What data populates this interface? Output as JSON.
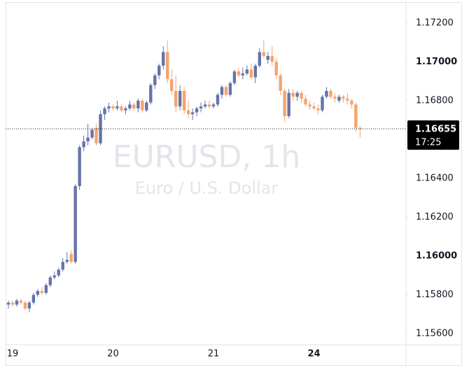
{
  "chart_data": {
    "type": "candlestick",
    "title": "EURUSD, 1h",
    "subtitle": "Euro / U.S. Dollar",
    "categories": [
      null,
      "19",
      null,
      null,
      null,
      null,
      null,
      null,
      null,
      null,
      null,
      null,
      null,
      null,
      null,
      null,
      null,
      null,
      null,
      null,
      null,
      null,
      null,
      null,
      null,
      "20",
      null,
      null,
      null,
      null,
      null,
      null,
      null,
      null,
      null,
      null,
      null,
      null,
      null,
      null,
      null,
      null,
      null,
      null,
      null,
      null,
      null,
      null,
      null,
      "21",
      null,
      null,
      null,
      null,
      null,
      null,
      null,
      null,
      null,
      null,
      null,
      null,
      null,
      null,
      null,
      null,
      null,
      null,
      null,
      null,
      null,
      null,
      null,
      "24",
      null,
      null,
      null,
      null,
      null,
      null,
      null,
      null,
      null,
      null,
      null
    ],
    "candles": [
      [
        1.1575,
        1.1577,
        1.1573,
        1.1576
      ],
      [
        1.1576,
        1.1577,
        1.1574,
        1.1575
      ],
      [
        1.1575,
        1.1578,
        1.1574,
        1.1577
      ],
      [
        1.1577,
        1.1578,
        1.1575,
        1.1576
      ],
      [
        1.1576,
        1.1577,
        1.1572,
        1.1573
      ],
      [
        1.1573,
        1.1577,
        1.1571,
        1.1576
      ],
      [
        1.1576,
        1.1581,
        1.1575,
        1.158
      ],
      [
        1.158,
        1.1583,
        1.1579,
        1.1582
      ],
      [
        1.1582,
        1.1584,
        1.158,
        1.1581
      ],
      [
        1.1581,
        1.1586,
        1.158,
        1.1585
      ],
      [
        1.1585,
        1.159,
        1.1584,
        1.1589
      ],
      [
        1.1589,
        1.1592,
        1.1588,
        1.159
      ],
      [
        1.159,
        1.1594,
        1.1589,
        1.1593
      ],
      [
        1.1593,
        1.1599,
        1.1592,
        1.1597
      ],
      [
        1.1597,
        1.1602,
        1.1596,
        1.1598
      ],
      [
        1.1601,
        1.1603,
        1.1596,
        1.1597
      ],
      [
        1.1597,
        1.1637,
        1.1596,
        1.1636
      ],
      [
        1.1636,
        1.1657,
        1.1634,
        1.1656
      ],
      [
        1.1656,
        1.1662,
        1.1654,
        1.1659
      ],
      [
        1.1659,
        1.1668,
        1.1657,
        1.1661
      ],
      [
        1.1661,
        1.1666,
        1.166,
        1.1665
      ],
      [
        1.1666,
        1.1668,
        1.1657,
        1.1658
      ],
      [
        1.1658,
        1.1675,
        1.1657,
        1.1673
      ],
      [
        1.1673,
        1.1677,
        1.167,
        1.1676
      ],
      [
        1.1676,
        1.1679,
        1.1674,
        1.1677
      ],
      [
        1.1677,
        1.1678,
        1.1675,
        1.1676
      ],
      [
        1.1676,
        1.168,
        1.1675,
        1.1677
      ],
      [
        1.1677,
        1.1678,
        1.1674,
        1.1675
      ],
      [
        1.1675,
        1.1677,
        1.1673,
        1.1676
      ],
      [
        1.1676,
        1.168,
        1.1675,
        1.1678
      ],
      [
        1.1678,
        1.1679,
        1.1675,
        1.1676
      ],
      [
        1.1676,
        1.1681,
        1.1674,
        1.168
      ],
      [
        1.168,
        1.1681,
        1.1674,
        1.1675
      ],
      [
        1.1675,
        1.168,
        1.1674,
        1.1679
      ],
      [
        1.1679,
        1.1689,
        1.1678,
        1.1688
      ],
      [
        1.1688,
        1.1694,
        1.1686,
        1.1693
      ],
      [
        1.1693,
        1.1699,
        1.1691,
        1.1698
      ],
      [
        1.1698,
        1.1708,
        1.1696,
        1.1705
      ],
      [
        1.1705,
        1.1711,
        1.1689,
        1.1691
      ],
      [
        1.1691,
        1.1696,
        1.1683,
        1.1685
      ],
      [
        1.1685,
        1.1693,
        1.1674,
        1.1677
      ],
      [
        1.1677,
        1.1688,
        1.1675,
        1.1685
      ],
      [
        1.1685,
        1.1687,
        1.1673,
        1.1675
      ],
      [
        1.1675,
        1.168,
        1.1671,
        1.1673
      ],
      [
        1.1673,
        1.1676,
        1.167,
        1.1674
      ],
      [
        1.1674,
        1.1677,
        1.1672,
        1.1676
      ],
      [
        1.1676,
        1.1679,
        1.1674,
        1.1677
      ],
      [
        1.1677,
        1.168,
        1.1676,
        1.1678
      ],
      [
        1.1678,
        1.168,
        1.1676,
        1.1677
      ],
      [
        1.1677,
        1.1679,
        1.1676,
        1.1678
      ],
      [
        1.1678,
        1.1684,
        1.1677,
        1.1683
      ],
      [
        1.1683,
        1.1688,
        1.1681,
        1.1687
      ],
      [
        1.1687,
        1.1688,
        1.1682,
        1.1683
      ],
      [
        1.1683,
        1.169,
        1.1682,
        1.1689
      ],
      [
        1.1689,
        1.1696,
        1.1688,
        1.1695
      ],
      [
        1.1695,
        1.1697,
        1.1692,
        1.1693
      ],
      [
        1.1693,
        1.1697,
        1.1691,
        1.1694
      ],
      [
        1.1694,
        1.1698,
        1.1693,
        1.1696
      ],
      [
        1.1696,
        1.1699,
        1.1691,
        1.1692
      ],
      [
        1.1692,
        1.1699,
        1.1689,
        1.1698
      ],
      [
        1.1698,
        1.1707,
        1.1697,
        1.1705
      ],
      [
        1.1705,
        1.1711,
        1.1702,
        1.1703
      ],
      [
        1.1701,
        1.1705,
        1.1699,
        1.1703
      ],
      [
        1.1703,
        1.1708,
        1.1698,
        1.17
      ],
      [
        1.17,
        1.1702,
        1.1691,
        1.1693
      ],
      [
        1.1693,
        1.1694,
        1.1683,
        1.1685
      ],
      [
        1.1685,
        1.1686,
        1.1669,
        1.1672
      ],
      [
        1.1672,
        1.1686,
        1.1671,
        1.1684
      ],
      [
        1.1684,
        1.1686,
        1.168,
        1.1682
      ],
      [
        1.1682,
        1.1685,
        1.168,
        1.1684
      ],
      [
        1.1684,
        1.1685,
        1.1679,
        1.1681
      ],
      [
        1.1681,
        1.1683,
        1.1677,
        1.1678
      ],
      [
        1.1678,
        1.168,
        1.1675,
        1.1677
      ],
      [
        1.1677,
        1.1679,
        1.1675,
        1.1676
      ],
      [
        1.1676,
        1.1678,
        1.1673,
        1.1675
      ],
      [
        1.1675,
        1.1683,
        1.1674,
        1.1682
      ],
      [
        1.1682,
        1.1687,
        1.1681,
        1.1685
      ],
      [
        1.1685,
        1.1686,
        1.1681,
        1.1682
      ],
      [
        1.1682,
        1.1684,
        1.1679,
        1.1681
      ],
      [
        1.168,
        1.1683,
        1.1679,
        1.1682
      ],
      [
        1.1682,
        1.1683,
        1.1679,
        1.1681
      ],
      [
        1.1681,
        1.1684,
        1.1678,
        1.168
      ],
      [
        1.168,
        1.1681,
        1.1676,
        1.1678
      ],
      [
        1.1678,
        1.1679,
        1.1664,
        1.1666
      ],
      [
        1.1666,
        1.1667,
        1.1661,
        1.16655
      ]
    ],
    "up_color": "#6673a8",
    "down_color": "#f5a46c",
    "ylim": [
      1.1555,
      1.173
    ],
    "yticks": [
      {
        "value": 1.156,
        "label": "1.15600"
      },
      {
        "value": 1.158,
        "label": "1.15800"
      },
      {
        "value": 1.16,
        "label": "1.16000"
      },
      {
        "value": 1.162,
        "label": "1.16200"
      },
      {
        "value": 1.164,
        "label": "1.16400"
      },
      {
        "value": 1.168,
        "label": "1.16800"
      },
      {
        "value": 1.17,
        "label": "1.17000"
      },
      {
        "value": 1.172,
        "label": "1.17200"
      }
    ],
    "last_price": 1.16655,
    "countdown": "17:25"
  }
}
